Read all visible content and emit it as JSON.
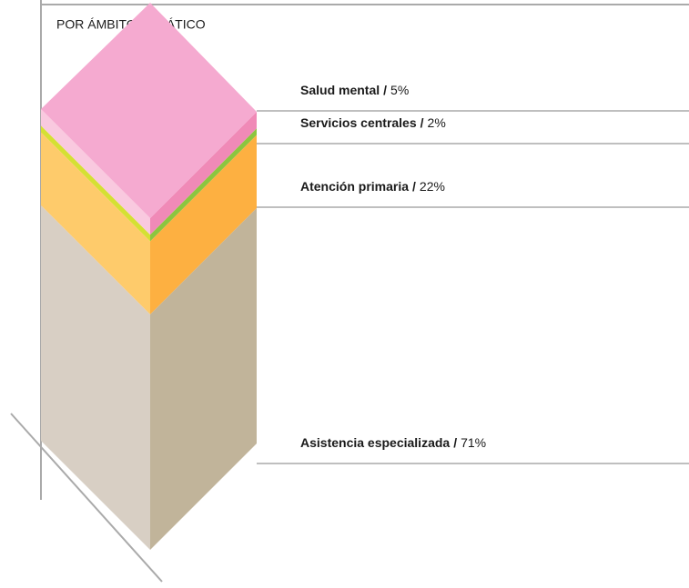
{
  "chart_data": {
    "type": "bar",
    "title": "POR ÁMBITO TEMÁTICO",
    "categories": [
      "Asistencia especializada",
      "Atención primaria",
      "Servicios centrales",
      "Salud mental"
    ],
    "values": [
      71,
      22,
      2,
      5
    ],
    "value_labels": [
      "71%",
      "22%",
      "2%",
      "5%"
    ],
    "separator": "/",
    "colors": [
      "#d8cfc4",
      "#fecb6b",
      "#d5e033",
      "#f9c9df"
    ],
    "side_colors": [
      "#c1b49a",
      "#fdb041",
      "#8cc63f",
      "#f08ab7"
    ],
    "top_color": "#f5aad0"
  }
}
